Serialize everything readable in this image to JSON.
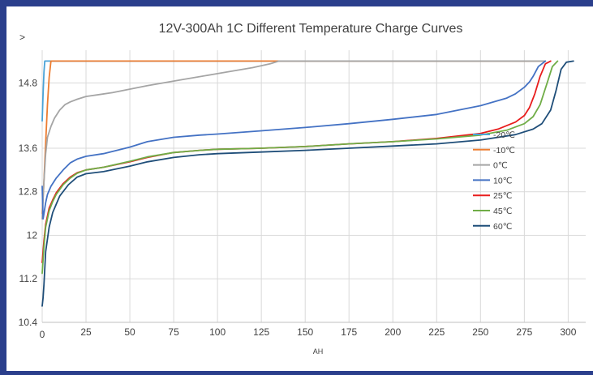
{
  "chart_data": {
    "type": "line",
    "title": "12V-300Ah 1C Different Temperature Charge Curves",
    "xlabel": "AH",
    "ylabel": ">",
    "xlim": [
      0,
      310
    ],
    "ylim": [
      10.4,
      15.4
    ],
    "x_ticks": [
      "0",
      "25",
      "50",
      "75",
      "100",
      "125",
      "150",
      "175",
      "200",
      "225",
      "250",
      "275",
      "300"
    ],
    "y_ticks": [
      "10.4",
      "11.2",
      "12",
      "12.8",
      "13.6",
      "14.8"
    ],
    "y_tick_values": [
      10.4,
      11.2,
      12.0,
      12.8,
      13.6,
      14.8
    ],
    "grid": true,
    "legend_position": "center-right",
    "series": [
      {
        "name": "-20℃",
        "color": "#4aa3d8",
        "x": [
          0,
          0.5,
          1,
          1.5,
          2,
          2.5,
          3,
          5,
          100,
          200,
          280,
          287
        ],
        "y": [
          14.1,
          14.6,
          15.0,
          15.2,
          15.2,
          15.2,
          15.2,
          15.2,
          15.2,
          15.2,
          15.2,
          15.2
        ]
      },
      {
        "name": "-10℃",
        "color": "#ed7d31",
        "x": [
          0,
          1,
          2,
          3,
          4,
          5,
          10,
          50,
          100,
          200,
          287
        ],
        "y": [
          12.4,
          13.0,
          13.7,
          14.4,
          14.9,
          15.2,
          15.2,
          15.2,
          15.2,
          15.2,
          15.2
        ]
      },
      {
        "name": "0℃",
        "color": "#a5a5a5",
        "x": [
          0,
          1,
          2,
          3,
          5,
          7,
          10,
          13,
          16,
          20,
          25,
          40,
          60,
          80,
          100,
          120,
          130,
          135,
          200,
          287
        ],
        "y": [
          12.3,
          13.0,
          13.5,
          13.8,
          14.0,
          14.15,
          14.3,
          14.4,
          14.45,
          14.5,
          14.55,
          14.62,
          14.75,
          14.86,
          14.97,
          15.08,
          15.15,
          15.2,
          15.2,
          15.2
        ]
      },
      {
        "name": "10℃",
        "color": "#4472c4",
        "x": [
          0,
          0.5,
          1,
          2,
          3,
          5,
          8,
          12,
          16,
          20,
          25,
          35,
          50,
          60,
          75,
          90,
          100,
          125,
          150,
          175,
          200,
          225,
          250,
          265,
          270,
          275,
          278,
          280,
          283,
          287
        ],
        "y": [
          12.9,
          12.3,
          12.4,
          12.6,
          12.75,
          12.9,
          13.05,
          13.2,
          13.33,
          13.4,
          13.45,
          13.5,
          13.62,
          13.72,
          13.8,
          13.84,
          13.86,
          13.92,
          13.98,
          14.05,
          14.13,
          14.22,
          14.38,
          14.52,
          14.6,
          14.72,
          14.82,
          14.92,
          15.1,
          15.2
        ]
      },
      {
        "name": "25℃",
        "color": "#e81c1c",
        "x": [
          0,
          1,
          2,
          4,
          6,
          8,
          12,
          16,
          20,
          25,
          35,
          50,
          60,
          75,
          90,
          100,
          125,
          150,
          175,
          200,
          225,
          250,
          260,
          270,
          275,
          278,
          281,
          284,
          287,
          290
        ],
        "y": [
          11.5,
          11.9,
          12.2,
          12.5,
          12.65,
          12.78,
          12.95,
          13.07,
          13.15,
          13.2,
          13.25,
          13.35,
          13.43,
          13.52,
          13.56,
          13.58,
          13.6,
          13.63,
          13.68,
          13.72,
          13.78,
          13.87,
          13.95,
          14.08,
          14.2,
          14.35,
          14.6,
          14.92,
          15.15,
          15.2
        ]
      },
      {
        "name": "45℃",
        "color": "#70ad47",
        "x": [
          0,
          1,
          2,
          4,
          6,
          8,
          12,
          16,
          20,
          25,
          35,
          50,
          60,
          75,
          90,
          100,
          125,
          150,
          175,
          200,
          225,
          250,
          265,
          275,
          280,
          284,
          288,
          291,
          294
        ],
        "y": [
          11.3,
          11.8,
          12.15,
          12.45,
          12.62,
          12.75,
          12.93,
          13.05,
          13.14,
          13.2,
          13.25,
          13.36,
          13.44,
          13.52,
          13.56,
          13.58,
          13.6,
          13.63,
          13.68,
          13.72,
          13.77,
          13.84,
          13.93,
          14.05,
          14.18,
          14.4,
          14.8,
          15.1,
          15.2
        ]
      },
      {
        "name": "60℃",
        "color": "#1f4e79",
        "x": [
          0,
          0.5,
          1,
          2,
          4,
          6,
          10,
          15,
          20,
          25,
          35,
          50,
          60,
          75,
          90,
          100,
          125,
          150,
          175,
          200,
          225,
          250,
          270,
          280,
          285,
          290,
          293,
          296,
          299,
          303
        ],
        "y": [
          10.7,
          10.85,
          11.1,
          11.7,
          12.15,
          12.42,
          12.72,
          12.93,
          13.07,
          13.13,
          13.17,
          13.27,
          13.35,
          13.43,
          13.48,
          13.5,
          13.53,
          13.56,
          13.6,
          13.64,
          13.68,
          13.75,
          13.85,
          13.95,
          14.05,
          14.3,
          14.65,
          15.05,
          15.18,
          15.2
        ]
      }
    ]
  }
}
